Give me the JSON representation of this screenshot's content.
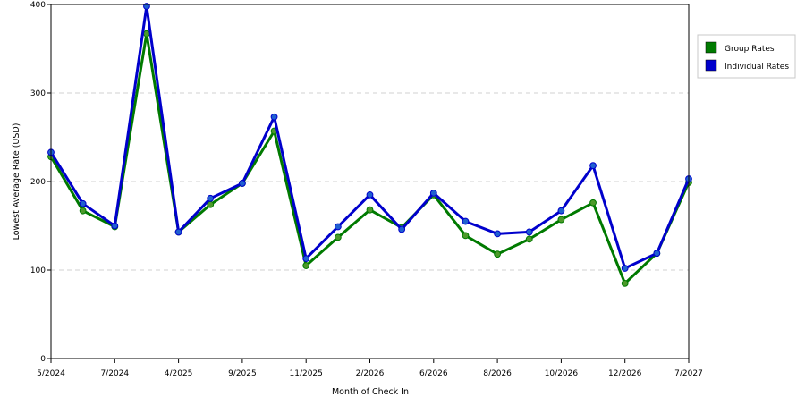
{
  "chart_data": {
    "type": "line",
    "xlabel": "Month of Check In",
    "ylabel": "Lowest Average Rate (USD)",
    "ylim": [
      0,
      400
    ],
    "yticks": [
      0,
      100,
      200,
      300,
      400
    ],
    "grid": "horizontal-dashed",
    "legend_position": "right",
    "x_tick_labels": [
      "5/2024",
      "7/2024",
      "4/2025",
      "9/2025",
      "11/2025",
      "2/2026",
      "6/2026",
      "8/2026",
      "10/2026",
      "12/2026",
      "7/2027"
    ],
    "series": [
      {
        "name": "Group Rates",
        "color": "#007a00",
        "marker_color": "#4c9a2a",
        "values": [
          228,
          167,
          149,
          367,
          143,
          174,
          198,
          257,
          105,
          137,
          168,
          148,
          185,
          139,
          118,
          135,
          157,
          176,
          85,
          119,
          199
        ]
      },
      {
        "name": "Individual Rates",
        "color": "#0000cc",
        "marker_color": "#2060d0",
        "values": [
          233,
          175,
          150,
          398,
          143,
          181,
          198,
          273,
          113,
          149,
          185,
          146,
          187,
          155,
          141,
          143,
          167,
          218,
          102,
          119,
          203
        ]
      }
    ]
  }
}
